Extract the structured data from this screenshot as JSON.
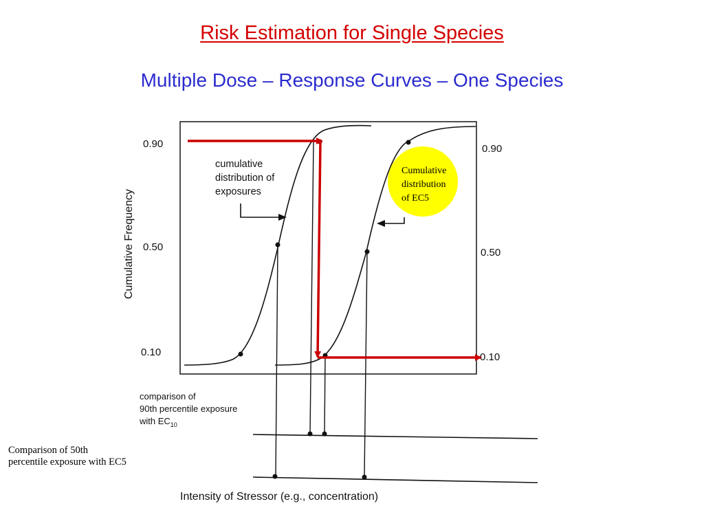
{
  "slide": {
    "title": "Risk Estimation for Single Species",
    "subtitle": "Multiple Dose – Response Curves – One Species",
    "side_note": "Comparison of 50th percentile exposure with EC5"
  },
  "figure": {
    "ylabel": "Cumulative Frequency",
    "xlabel": "Intensity of Stressor (e.g., concentration)",
    "left_ticks": [
      "0.90",
      "0.50",
      "0.10"
    ],
    "right_ticks": [
      "0.90",
      "0.50",
      "0.10"
    ],
    "exposure_label": [
      "cumulative",
      "distribution of",
      "exposures"
    ],
    "comparison_label": [
      "comparison of",
      "90th percentile exposure",
      "with  EC"
    ],
    "comparison_subscript": "10",
    "callout": [
      "Cumulative",
      "distribution",
      "of EC5"
    ],
    "colors": {
      "title": "#d40000",
      "subtitle": "#2b2bcf",
      "arrow": "#cc0000",
      "callout_fill": "#ffff00"
    }
  }
}
